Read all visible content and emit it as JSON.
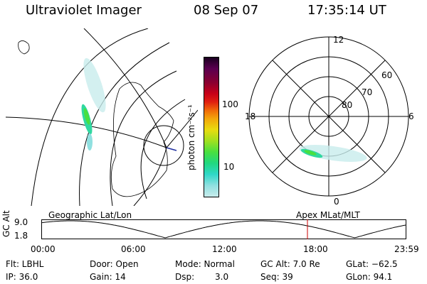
{
  "header": {
    "instrument": "Ultraviolet Imager",
    "date": "08 Sep 07",
    "time": "17:35:14 UT"
  },
  "colorbar": {
    "unit_label": "photon cm⁻²s⁻¹",
    "ticks": [
      "100",
      "10"
    ],
    "colors": [
      "#3a0a3a",
      "#5a0050",
      "#8a0030",
      "#c80018",
      "#e02010",
      "#f06a08",
      "#f3a60a",
      "#e8dc10",
      "#a0e020",
      "#48e040",
      "#20d880",
      "#30d8c8",
      "#90e0e0",
      "#c8ecec"
    ]
  },
  "polar_plot": {
    "mlt_labels": [
      "12",
      "18",
      "6",
      "0"
    ],
    "lat_labels": [
      "60",
      "70",
      "80"
    ]
  },
  "timeline": {
    "left_label": "Geographic Lat/Lon",
    "right_label": "Apex MLat/MLT",
    "axis_label": "GC Alt",
    "y_ticks": [
      "9.0",
      "1.8"
    ],
    "x_ticks": [
      "00:00",
      "06:00",
      "12:00",
      "18:00",
      "23:59"
    ],
    "marker_color": "#cc0000"
  },
  "status": {
    "flt": "Flt: LBHL",
    "door": "Door: Open",
    "mode": "Mode: Normal",
    "gc_alt": "GC Alt: 7.0 Re",
    "glat": "GLat: −62.5",
    "ip": "IP: 36.0",
    "gain": "Gain: 14",
    "dsp_label": "Dsp:",
    "dsp_value": "3.0",
    "seq": "Seq: 39",
    "glon": "GLon:  94.1"
  }
}
